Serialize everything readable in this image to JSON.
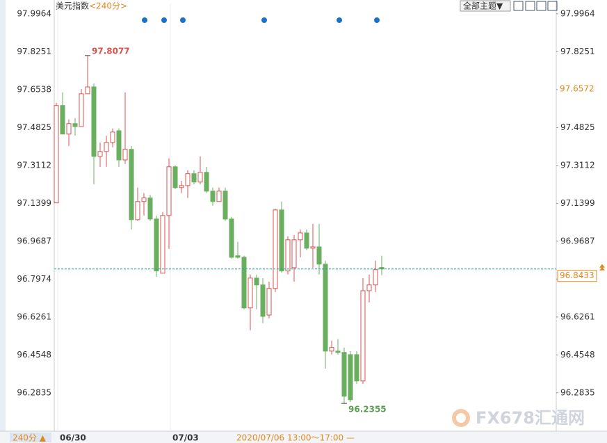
{
  "chart_data": {
    "type": "candlestick",
    "title": "美元指数",
    "period_label": "<240分>",
    "theme_menu": "全部主题▼",
    "period_button": "240分 ▲",
    "status": "2020/07/06 13:00～17:00 —",
    "watermark": "FX678汇通网",
    "up_color": "#d9534f",
    "down_color": "#6aaf5f",
    "max_label": 97.8077,
    "min_label": 96.2355,
    "current_price": 96.8433,
    "reference_price": 97.6572,
    "ylim": [
      96.11,
      98.04
    ],
    "yticks": [
      97.9964,
      97.8251,
      97.6538,
      97.4825,
      97.3112,
      97.1399,
      96.9687,
      96.7974,
      96.6261,
      96.4548,
      96.2835
    ],
    "grid": false,
    "categories": [
      "06/30",
      null,
      null,
      null,
      null,
      null,
      null,
      null,
      null,
      null,
      null,
      null,
      null,
      null,
      null,
      null,
      null,
      null,
      "07/03",
      null,
      null,
      null,
      null,
      null,
      null,
      null,
      null,
      null,
      null,
      null,
      null,
      null,
      null,
      null,
      null,
      null,
      null,
      null,
      null,
      null,
      null,
      null,
      null,
      null,
      null,
      null,
      null,
      null,
      null,
      null,
      null,
      null,
      null
    ],
    "open": [
      97.142,
      97.582,
      97.453,
      97.5,
      97.487,
      97.635,
      97.666,
      97.352,
      97.374,
      97.415,
      97.468,
      97.336,
      97.384,
      97.066,
      97.148,
      97.164,
      97.069,
      96.824,
      97.085,
      97.305,
      97.211,
      97.22,
      97.274,
      97.236,
      97.28,
      97.195,
      97.148,
      97.195,
      97.069,
      96.903,
      96.896,
      96.667,
      96.802,
      96.771,
      96.635,
      96.755,
      97.11,
      96.834,
      96.849,
      96.975,
      97.006,
      96.937,
      96.943,
      96.865,
      96.472,
      96.472,
      96.466,
      96.456,
      96.456,
      96.337,
      96.745,
      96.771,
      96.85
    ],
    "high": [
      97.594,
      97.641,
      97.519,
      97.525,
      97.657,
      97.8077,
      97.682,
      97.415,
      97.446,
      97.478,
      97.478,
      97.641,
      97.399,
      97.211,
      97.186,
      97.179,
      97.085,
      97.101,
      97.343,
      97.311,
      97.242,
      97.289,
      97.289,
      97.352,
      97.305,
      97.211,
      97.211,
      97.211,
      97.079,
      96.966,
      96.903,
      96.818,
      96.818,
      96.802,
      96.786,
      97.116,
      97.148,
      96.991,
      96.997,
      97.022,
      97.022,
      97.047,
      97.047,
      96.881,
      96.519,
      96.526,
      96.488,
      96.472,
      96.472,
      96.802,
      96.818,
      96.881,
      96.903
    ],
    "low": [
      97.142,
      97.453,
      97.399,
      97.446,
      97.487,
      97.635,
      97.226,
      97.305,
      97.305,
      97.393,
      97.305,
      97.318,
      97.022,
      97.06,
      97.085,
      97.06,
      96.808,
      96.824,
      96.934,
      97.204,
      97.186,
      97.164,
      97.226,
      97.226,
      97.186,
      97.129,
      97.148,
      97.06,
      96.89,
      96.89,
      96.661,
      96.566,
      96.661,
      96.598,
      96.62,
      96.739,
      96.827,
      96.818,
      96.786,
      96.896,
      96.928,
      96.849,
      96.818,
      96.393,
      96.456,
      96.456,
      96.2355,
      96.242,
      96.324,
      96.324,
      96.692,
      96.739,
      96.815
    ],
    "close": [
      97.582,
      97.453,
      97.5,
      97.487,
      97.635,
      97.666,
      97.352,
      97.374,
      97.415,
      97.462,
      97.336,
      97.384,
      97.066,
      97.148,
      97.164,
      97.069,
      96.834,
      97.085,
      97.305,
      97.211,
      97.22,
      97.274,
      97.236,
      97.28,
      97.195,
      97.148,
      97.195,
      97.069,
      96.896,
      96.896,
      96.667,
      96.802,
      96.771,
      96.629,
      96.755,
      97.11,
      96.834,
      96.975,
      96.975,
      97.006,
      96.937,
      96.943,
      96.865,
      96.472,
      96.488,
      96.466,
      96.268,
      96.252,
      96.337,
      96.745,
      96.771,
      96.84,
      96.8433
    ]
  }
}
